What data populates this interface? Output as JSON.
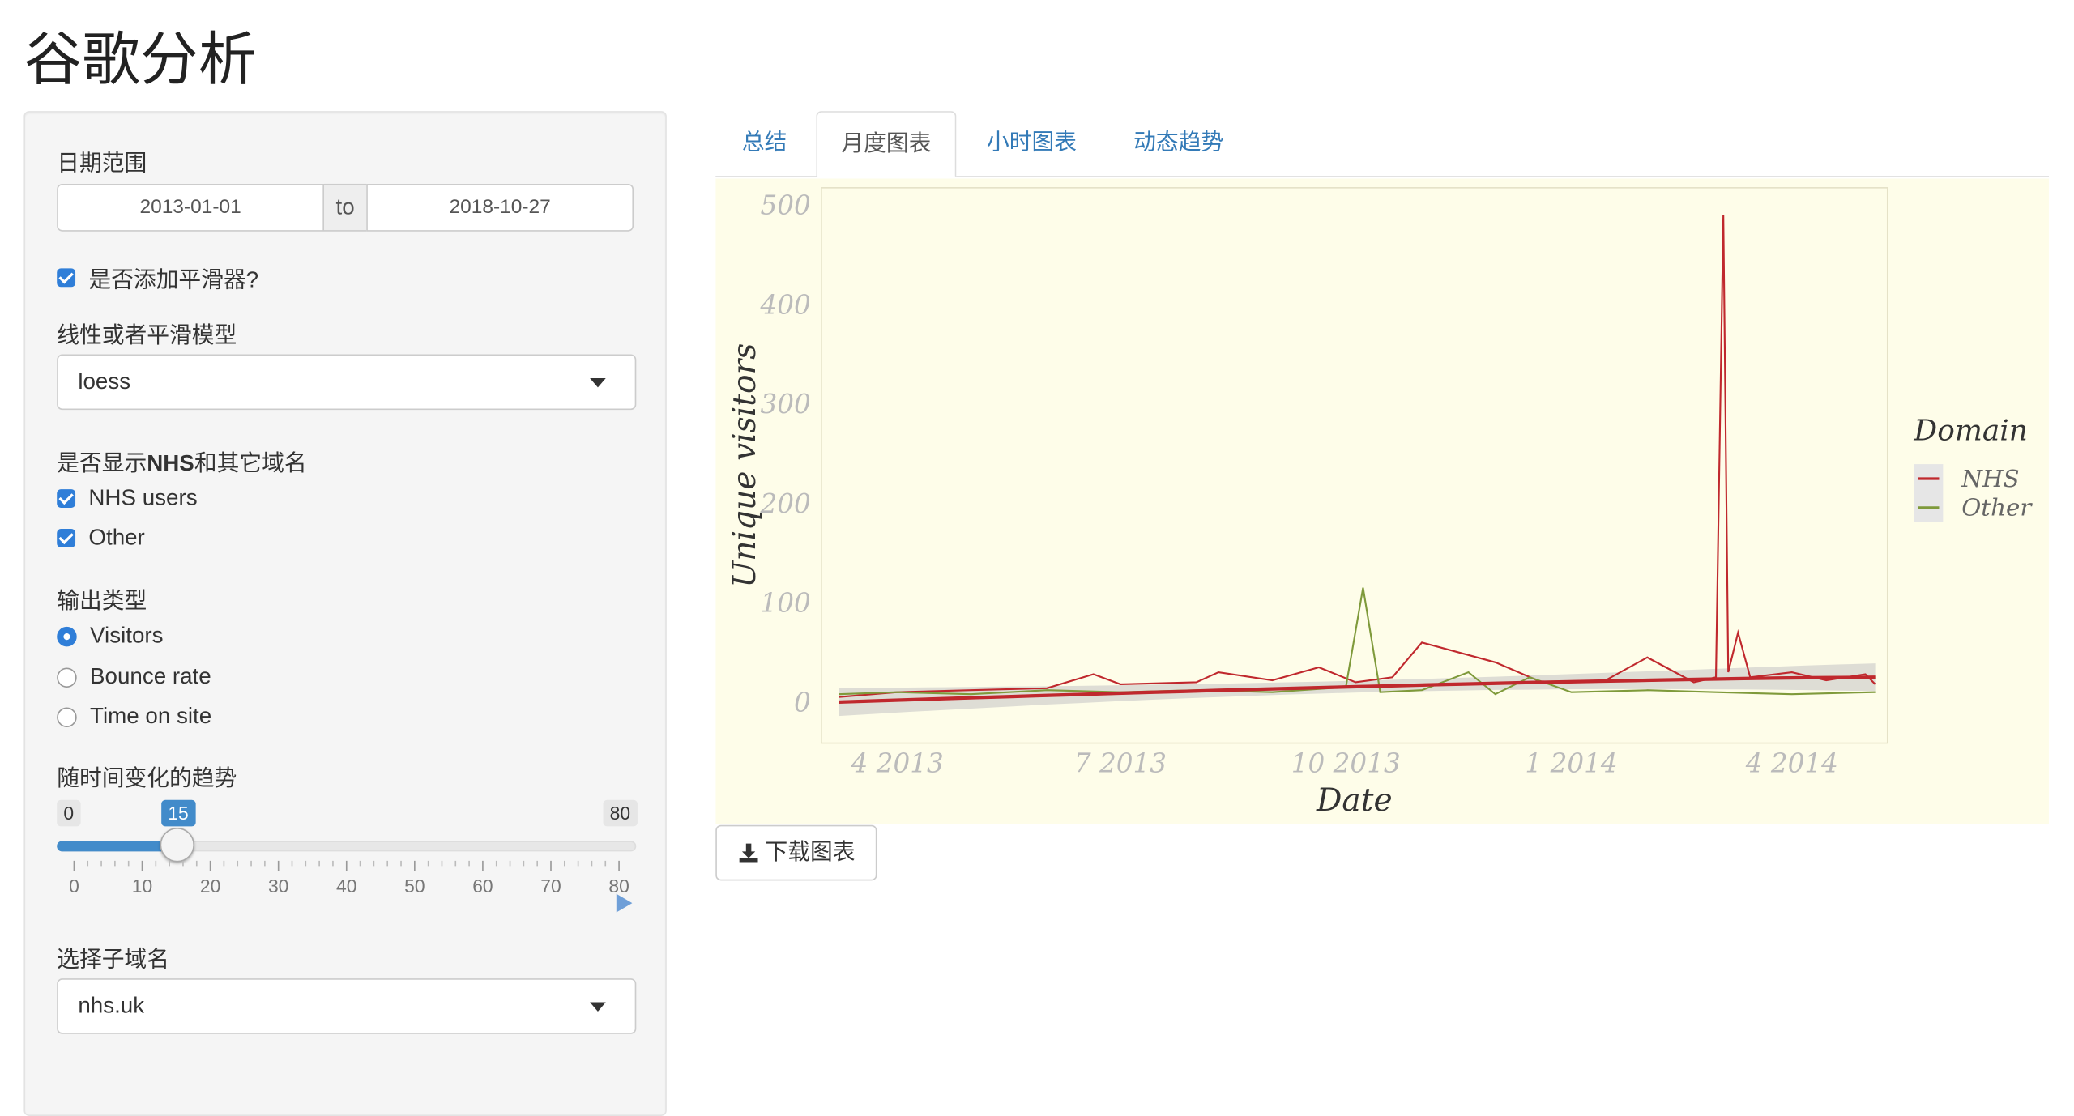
{
  "page": {
    "title": "谷歌分析"
  },
  "sidebar": {
    "date_range": {
      "label": "日期范围",
      "start": "2013-01-01",
      "separator": "to",
      "end": "2018-10-27"
    },
    "smoother": {
      "label": "是否添加平滑器?",
      "checked": true
    },
    "model": {
      "label": "线性或者平滑模型",
      "selected": "loess"
    },
    "domains": {
      "label_prefix": "是否显示",
      "label_bold": "NHS",
      "label_suffix": "和其它域名",
      "options": [
        {
          "label": "NHS users",
          "checked": true
        },
        {
          "label": "Other",
          "checked": true
        }
      ]
    },
    "output": {
      "label": "输出类型",
      "options": [
        {
          "label": "Visitors",
          "selected": true
        },
        {
          "label": "Bounce rate",
          "selected": false
        },
        {
          "label": "Time on site",
          "selected": false
        }
      ]
    },
    "trend": {
      "label": "随时间变化的趋势",
      "min": "0",
      "max": "80",
      "value": "15",
      "ticks": [
        "0",
        "10",
        "20",
        "30",
        "40",
        "50",
        "60",
        "70",
        "80"
      ]
    },
    "subdomain": {
      "label": "选择子域名",
      "selected": "nhs.uk"
    }
  },
  "tabs": [
    {
      "label": "总结",
      "active": false
    },
    {
      "label": "月度图表",
      "active": true
    },
    {
      "label": "小时图表",
      "active": false
    },
    {
      "label": "动态趋势",
      "active": false
    }
  ],
  "download": {
    "label": "下载图表",
    "icon": "download-icon"
  },
  "colors": {
    "accent": "#428bca",
    "nhs": "#c0282d",
    "other": "#7f9a3b",
    "plot_bg": "#fefde9"
  },
  "chart_data": {
    "type": "line",
    "xlabel": "Date",
    "ylabel": "Unique visitors",
    "x_range": [
      "2013-03-01",
      "2014-05-10"
    ],
    "ylim": [
      0,
      500
    ],
    "yticks": [
      "0",
      "100",
      "200",
      "300",
      "400",
      "500"
    ],
    "xticks": [
      {
        "date": "2013-04-01",
        "label": "4 2013"
      },
      {
        "date": "2013-07-01",
        "label": "7 2013"
      },
      {
        "date": "2013-10-01",
        "label": "10 2013"
      },
      {
        "date": "2014-01-01",
        "label": "1 2014"
      },
      {
        "date": "2014-04-01",
        "label": "4 2014"
      }
    ],
    "legend": {
      "title": "Domain",
      "position": "right"
    },
    "series": [
      {
        "name": "NHS",
        "x": [
          "2013-03-08",
          "2013-04-01",
          "2013-05-01",
          "2013-06-01",
          "2013-06-20",
          "2013-07-01",
          "2013-08-01",
          "2013-08-10",
          "2013-09-01",
          "2013-09-20",
          "2013-10-05",
          "2013-10-20",
          "2013-11-01",
          "2013-12-01",
          "2013-12-20",
          "2014-01-01",
          "2014-01-15",
          "2014-02-01",
          "2014-02-20",
          "2014-03-01",
          "2014-03-04",
          "2014-03-06",
          "2014-03-10",
          "2014-03-15",
          "2014-04-01",
          "2014-04-15",
          "2014-05-01",
          "2014-05-05"
        ],
        "y": [
          5,
          10,
          12,
          14,
          28,
          18,
          20,
          30,
          22,
          35,
          20,
          25,
          60,
          40,
          20,
          20,
          22,
          45,
          20,
          25,
          490,
          30,
          70,
          25,
          30,
          22,
          28,
          18
        ]
      },
      {
        "name": "Other",
        "x": [
          "2013-03-08",
          "2013-04-01",
          "2013-05-01",
          "2013-06-01",
          "2013-07-01",
          "2013-08-01",
          "2013-09-01",
          "2013-10-01",
          "2013-10-08",
          "2013-10-15",
          "2013-11-01",
          "2013-11-20",
          "2013-12-01",
          "2013-12-15",
          "2014-01-01",
          "2014-02-01",
          "2014-03-01",
          "2014-04-01",
          "2014-05-05"
        ],
        "y": [
          8,
          10,
          8,
          12,
          10,
          12,
          10,
          15,
          115,
          10,
          12,
          30,
          8,
          25,
          10,
          12,
          10,
          8,
          10
        ]
      }
    ],
    "smooth": {
      "start": 0,
      "end": 25
    }
  }
}
